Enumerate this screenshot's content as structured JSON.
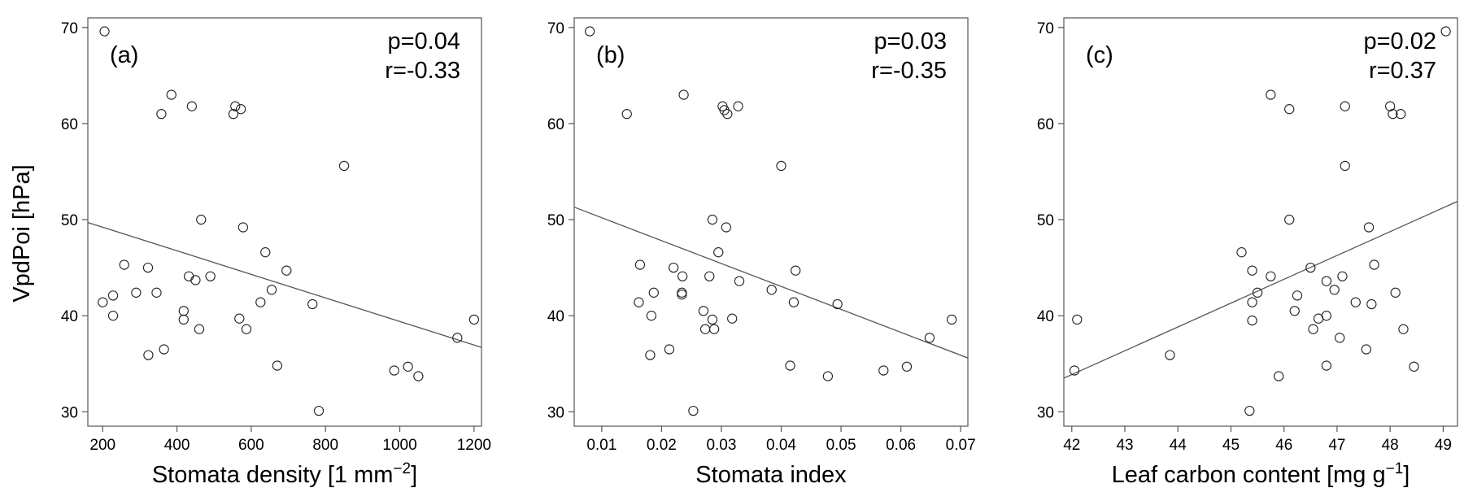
{
  "ylabel": "VpdPoi [hPa]",
  "chart_data": [
    {
      "type": "scatter",
      "panel": "(a)",
      "p_text": "p=0.04",
      "r_text": "r=-0.33",
      "xlabel": "Stomata density [1 mm",
      "xlabel_sup": "−2",
      "xlabel_after": "]",
      "ylabel": "VpdPoi [hPa]",
      "xlim": [
        160,
        1220
      ],
      "ylim": [
        28.5,
        71
      ],
      "xticks": [
        200,
        400,
        600,
        800,
        1000,
        1200
      ],
      "xtick_labels": [
        "200",
        "400",
        "600",
        "800",
        "1000",
        "1200"
      ],
      "yticks": [
        30,
        40,
        50,
        60,
        70
      ],
      "ytick_labels": [
        "30",
        "40",
        "50",
        "60",
        "70"
      ],
      "fit": {
        "x": [
          160,
          1220
        ],
        "y": [
          49.7,
          36.7
        ]
      },
      "points": [
        [
          205,
          69.6
        ],
        [
          385,
          63.0
        ],
        [
          358,
          61.0
        ],
        [
          440,
          61.8
        ],
        [
          557,
          61.8
        ],
        [
          552,
          61.0
        ],
        [
          572,
          61.5
        ],
        [
          850,
          55.6
        ],
        [
          465,
          50.0
        ],
        [
          578,
          49.2
        ],
        [
          638,
          46.6
        ],
        [
          258,
          45.3
        ],
        [
          322,
          45.0
        ],
        [
          695,
          44.7
        ],
        [
          432,
          44.1
        ],
        [
          450,
          43.7
        ],
        [
          490,
          44.1
        ],
        [
          655,
          42.7
        ],
        [
          290,
          42.4
        ],
        [
          345,
          42.4
        ],
        [
          228,
          42.1
        ],
        [
          200,
          41.4
        ],
        [
          625,
          41.4
        ],
        [
          765,
          41.2
        ],
        [
          418,
          40.5
        ],
        [
          228,
          40.0
        ],
        [
          418,
          39.6
        ],
        [
          568,
          39.7
        ],
        [
          1200,
          39.6
        ],
        [
          460,
          38.6
        ],
        [
          587,
          38.6
        ],
        [
          1155,
          37.7
        ],
        [
          365,
          36.5
        ],
        [
          323,
          35.9
        ],
        [
          670,
          34.8
        ],
        [
          1022,
          34.7
        ],
        [
          985,
          34.3
        ],
        [
          1050,
          33.7
        ],
        [
          782,
          30.1
        ]
      ]
    },
    {
      "type": "scatter",
      "panel": "(b)",
      "p_text": "p=0.03",
      "r_text": "r=-0.35",
      "xlabel": "Stomata index",
      "xlabel_sup": "",
      "xlabel_after": "",
      "ylabel": "",
      "xlim": [
        0.0054,
        0.0712
      ],
      "ylim": [
        28.5,
        71
      ],
      "xticks": [
        0.01,
        0.02,
        0.03,
        0.04,
        0.05,
        0.06,
        0.07
      ],
      "xtick_labels": [
        "0.01",
        "0.02",
        "0.03",
        "0.04",
        "0.05",
        "0.06",
        "0.07"
      ],
      "yticks": [
        30,
        40,
        50,
        60,
        70
      ],
      "ytick_labels": [
        "30",
        "40",
        "50",
        "60",
        "70"
      ],
      "fit": {
        "x": [
          0.0054,
          0.0712
        ],
        "y": [
          51.3,
          35.6
        ]
      },
      "points": [
        [
          0.008,
          69.6
        ],
        [
          0.0237,
          63.0
        ],
        [
          0.0142,
          61.0
        ],
        [
          0.0302,
          61.8
        ],
        [
          0.0305,
          61.4
        ],
        [
          0.031,
          61.0
        ],
        [
          0.0328,
          61.8
        ],
        [
          0.04,
          55.6
        ],
        [
          0.0285,
          50.0
        ],
        [
          0.0308,
          49.2
        ],
        [
          0.0295,
          46.6
        ],
        [
          0.0164,
          45.3
        ],
        [
          0.022,
          45.0
        ],
        [
          0.0424,
          44.7
        ],
        [
          0.0235,
          44.1
        ],
        [
          0.028,
          44.1
        ],
        [
          0.033,
          43.6
        ],
        [
          0.0384,
          42.7
        ],
        [
          0.0187,
          42.4
        ],
        [
          0.0234,
          42.4
        ],
        [
          0.0234,
          42.2
        ],
        [
          0.0162,
          41.4
        ],
        [
          0.0421,
          41.4
        ],
        [
          0.0494,
          41.2
        ],
        [
          0.027,
          40.5
        ],
        [
          0.0183,
          40.0
        ],
        [
          0.0285,
          39.6
        ],
        [
          0.0318,
          39.7
        ],
        [
          0.0685,
          39.6
        ],
        [
          0.0273,
          38.6
        ],
        [
          0.0288,
          38.6
        ],
        [
          0.0648,
          37.7
        ],
        [
          0.0213,
          36.5
        ],
        [
          0.0181,
          35.9
        ],
        [
          0.0415,
          34.8
        ],
        [
          0.061,
          34.7
        ],
        [
          0.0571,
          34.3
        ],
        [
          0.0478,
          33.7
        ],
        [
          0.0253,
          30.1
        ]
      ]
    },
    {
      "type": "scatter",
      "panel": "(c)",
      "p_text": "p=0.02",
      "r_text": "r=0.37",
      "xlabel": "Leaf carbon content [mg g",
      "xlabel_sup": "−1",
      "xlabel_after": "]",
      "ylabel": "",
      "xlim": [
        41.85,
        49.27
      ],
      "ylim": [
        28.5,
        71
      ],
      "xticks": [
        42,
        43,
        44,
        45,
        46,
        47,
        48,
        49
      ],
      "xtick_labels": [
        "42",
        "43",
        "44",
        "45",
        "46",
        "47",
        "48",
        "49"
      ],
      "yticks": [
        30,
        40,
        50,
        60,
        70
      ],
      "ytick_labels": [
        "30",
        "40",
        "50",
        "60",
        "70"
      ],
      "fit": {
        "x": [
          41.85,
          49.27
        ],
        "y": [
          33.5,
          51.9
        ]
      },
      "points": [
        [
          49.05,
          69.6
        ],
        [
          45.75,
          63.0
        ],
        [
          46.1,
          61.5
        ],
        [
          47.15,
          61.8
        ],
        [
          48.0,
          61.8
        ],
        [
          48.05,
          61.0
        ],
        [
          48.2,
          61.0
        ],
        [
          47.15,
          55.6
        ],
        [
          46.1,
          50.0
        ],
        [
          47.6,
          49.2
        ],
        [
          45.2,
          46.6
        ],
        [
          47.7,
          45.3
        ],
        [
          46.5,
          45.0
        ],
        [
          45.4,
          44.7
        ],
        [
          45.75,
          44.1
        ],
        [
          47.1,
          44.1
        ],
        [
          46.8,
          43.6
        ],
        [
          46.95,
          42.7
        ],
        [
          45.5,
          42.4
        ],
        [
          48.1,
          42.4
        ],
        [
          46.25,
          42.1
        ],
        [
          45.4,
          41.4
        ],
        [
          47.35,
          41.4
        ],
        [
          47.65,
          41.2
        ],
        [
          46.2,
          40.5
        ],
        [
          46.8,
          40.0
        ],
        [
          42.1,
          39.6
        ],
        [
          45.4,
          39.5
        ],
        [
          46.65,
          39.7
        ],
        [
          46.55,
          38.6
        ],
        [
          48.25,
          38.6
        ],
        [
          47.05,
          37.7
        ],
        [
          47.55,
          36.5
        ],
        [
          43.85,
          35.9
        ],
        [
          46.8,
          34.8
        ],
        [
          48.45,
          34.7
        ],
        [
          42.05,
          34.3
        ],
        [
          45.9,
          33.7
        ],
        [
          45.35,
          30.1
        ]
      ]
    }
  ]
}
